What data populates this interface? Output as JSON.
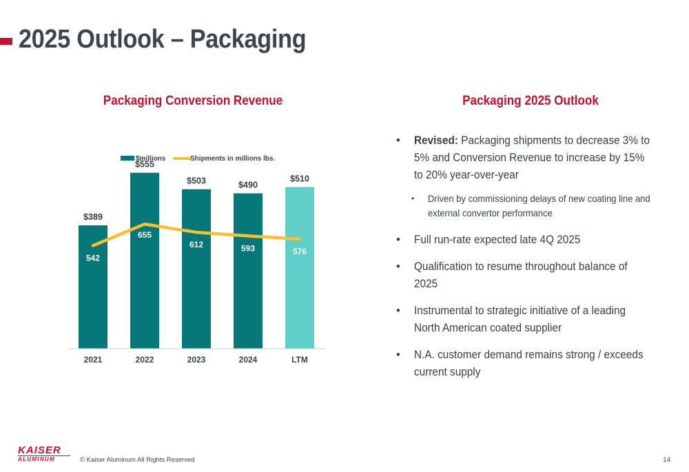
{
  "header": {
    "title": "2025 Outlook – Packaging"
  },
  "chart_section": {
    "title": "Packaging Conversion Revenue"
  },
  "outlook_section": {
    "title": "Packaging 2025 Outlook",
    "bullets": [
      {
        "lead": "Revised:",
        "text": " Packaging shipments to decrease 3% to 5% and Conversion Revenue to increase by 15% to 20% year-over-year"
      },
      {
        "text": "Driven by commissioning delays of new coating line and external convertor performance"
      },
      {
        "text": "Full run-rate expected late 4Q 2025"
      },
      {
        "text": "Qualification to resume throughout balance of 2025"
      },
      {
        "text": "Instrumental to strategic initiative of a leading North American coated supplier"
      },
      {
        "text": "N.A. customer demand remains strong / exceeds current supply"
      }
    ]
  },
  "chart_data": {
    "type": "bar",
    "categories": [
      "2021",
      "2022",
      "2023",
      "2024",
      "LTM"
    ],
    "series": [
      {
        "name": "$millions",
        "type": "bar",
        "values": [
          389,
          555,
          503,
          490,
          510
        ],
        "labels": [
          "$389",
          "$555",
          "$503",
          "$490",
          "$510"
        ]
      },
      {
        "name": "Shipments in millions lbs.",
        "type": "line",
        "values": [
          542,
          655,
          612,
          593,
          576
        ],
        "labels": [
          "542",
          "655",
          "612",
          "593",
          "576"
        ]
      }
    ],
    "colors": {
      "bar": "#06787a",
      "bar_ltm": "#5fcfc9",
      "line": "#fbbf2d",
      "bar_label": "#3a3f44",
      "line_label": "#ffffff"
    },
    "legend_position": "top",
    "grid": false,
    "bar_ylim": [
      0,
      600
    ],
    "line_ylim": [
      0,
      1000
    ]
  },
  "footer": {
    "logo_top": "KAISER",
    "logo_bottom": "ALUMINUM",
    "copyright": "© Kaiser Aluminum All Rights Reserved",
    "page_number": "14"
  }
}
